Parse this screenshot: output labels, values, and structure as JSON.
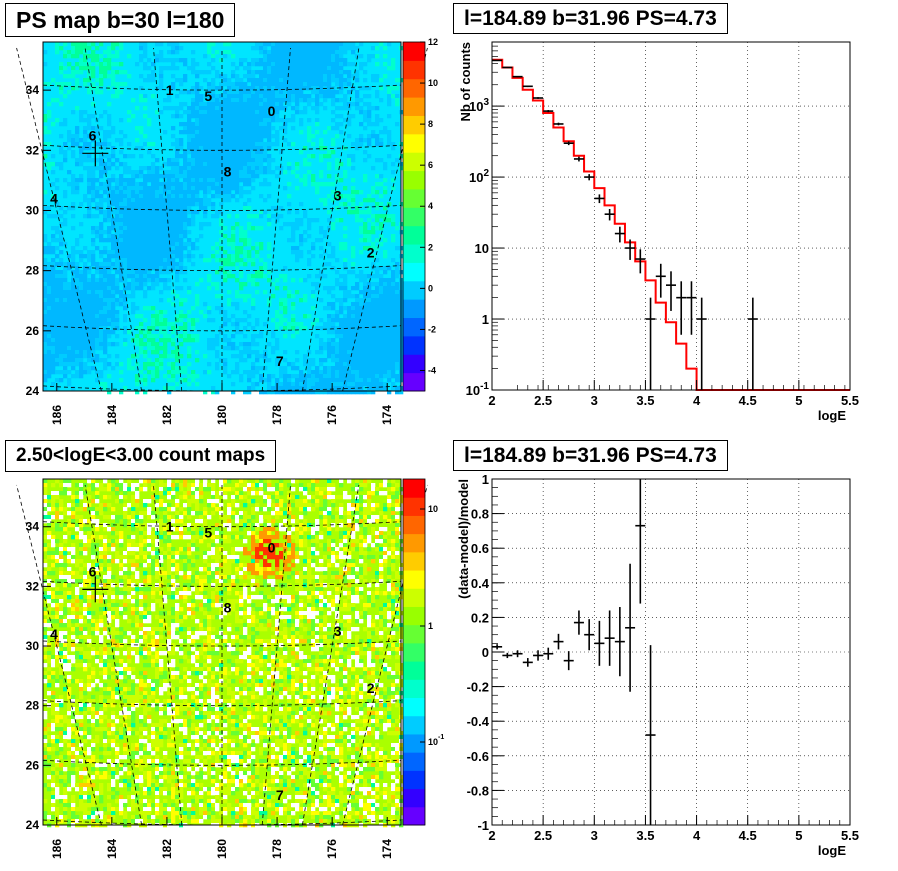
{
  "titles": {
    "ps_map": "PS map b=30 l=180",
    "spectrum": "l=184.89 b=31.96 PS=4.73",
    "count_map": "2.50<logE<3.00 count maps",
    "residual": "l=184.89 b=31.96 PS=4.73"
  },
  "chart_data": [
    {
      "type": "heatmap",
      "title": "PS map b=30 l=180",
      "x_ticks": [
        "186",
        "184",
        "182",
        "180",
        "178",
        "176",
        "174"
      ],
      "y_ticks": [
        "24",
        "26",
        "28",
        "30",
        "32",
        "34"
      ],
      "xlim": [
        186.5,
        173.5
      ],
      "ylim": [
        24,
        35.6
      ],
      "colorbar_ticks": [
        "-4",
        "-2",
        "0",
        "2",
        "4",
        "6",
        "8",
        "10",
        "12"
      ],
      "colorbar_range": [
        -5,
        12
      ],
      "sources": [
        {
          "label": "0",
          "l": 178.2,
          "b": 33.3
        },
        {
          "label": "1",
          "l": 181.9,
          "b": 34.0
        },
        {
          "label": "2",
          "l": 174.6,
          "b": 28.6
        },
        {
          "label": "3",
          "l": 175.8,
          "b": 30.5
        },
        {
          "label": "4",
          "l": 186.1,
          "b": 30.4
        },
        {
          "label": "5",
          "l": 180.5,
          "b": 33.8
        },
        {
          "label": "6",
          "l": 184.7,
          "b": 32.5
        },
        {
          "label": "7",
          "l": 177.9,
          "b": 25.0
        },
        {
          "label": "8",
          "l": 179.8,
          "b": 31.3
        }
      ],
      "marker": {
        "l": 184.6,
        "b": 31.9
      }
    },
    {
      "type": "line",
      "title": "l=184.89 b=31.96 PS=4.73",
      "xlabel": "logE",
      "ylabel": "Nb of counts",
      "yscale": "log",
      "xlim": [
        2,
        5.5
      ],
      "ylim": [
        0.1,
        8000
      ],
      "x_ticks": [
        "2",
        "2.5",
        "3",
        "3.5",
        "4",
        "4.5",
        "5",
        "5.5"
      ],
      "y_ticks": [
        "10^-1",
        "1",
        "10",
        "10^2",
        "10^3"
      ],
      "grid": true,
      "data_points": [
        {
          "x": 2.05,
          "y": 4400,
          "err": [
            60,
            60
          ]
        },
        {
          "x": 2.15,
          "y": 3500,
          "err": [
            60,
            60
          ]
        },
        {
          "x": 2.25,
          "y": 2600,
          "err": [
            50,
            50
          ]
        },
        {
          "x": 2.35,
          "y": 1900,
          "err": [
            45,
            45
          ]
        },
        {
          "x": 2.45,
          "y": 1300,
          "err": [
            36,
            36
          ]
        },
        {
          "x": 2.55,
          "y": 850,
          "err": [
            30,
            30
          ]
        },
        {
          "x": 2.65,
          "y": 560,
          "err": [
            24,
            24
          ]
        },
        {
          "x": 2.75,
          "y": 300,
          "err": [
            18,
            18
          ]
        },
        {
          "x": 2.85,
          "y": 180,
          "err": [
            14,
            14
          ]
        },
        {
          "x": 2.95,
          "y": 100,
          "err": [
            10,
            10
          ]
        },
        {
          "x": 3.05,
          "y": 50,
          "err": [
            7,
            7
          ]
        },
        {
          "x": 3.15,
          "y": 30,
          "err": [
            5.5,
            5.5
          ]
        },
        {
          "x": 3.25,
          "y": 16,
          "err": [
            4,
            4
          ]
        },
        {
          "x": 3.35,
          "y": 10,
          "err": [
            3.2,
            3.2
          ]
        },
        {
          "x": 3.45,
          "y": 7,
          "err": [
            2.6,
            2.6
          ]
        },
        {
          "x": 3.55,
          "y": 1,
          "err": [
            0.9,
            1
          ]
        },
        {
          "x": 3.65,
          "y": 4,
          "err": [
            2,
            2
          ]
        },
        {
          "x": 3.75,
          "y": 3,
          "err": [
            1.7,
            1.7
          ]
        },
        {
          "x": 3.85,
          "y": 2,
          "err": [
            1.4,
            1.4
          ]
        },
        {
          "x": 3.95,
          "y": 2,
          "err": [
            1.4,
            1.4
          ]
        },
        {
          "x": 4.05,
          "y": 1,
          "err": [
            0.9,
            1
          ]
        },
        {
          "x": 4.55,
          "y": 1,
          "err": [
            0.9,
            1
          ]
        }
      ],
      "model_edges": [
        2.0,
        2.1,
        2.2,
        2.3,
        2.4,
        2.5,
        2.6,
        2.7,
        2.8,
        2.9,
        3.0,
        3.1,
        3.2,
        3.3,
        3.4,
        3.5,
        3.6,
        3.7,
        3.8,
        3.9,
        4.0,
        5.5
      ],
      "model_values": [
        4500,
        3500,
        2500,
        1700,
        1200,
        800,
        500,
        320,
        200,
        120,
        70,
        40,
        22,
        12,
        6.5,
        3.5,
        1.7,
        0.9,
        0.45,
        0.2,
        0.1
      ]
    },
    {
      "type": "heatmap",
      "title": "2.50<logE<3.00 count maps",
      "x_ticks": [
        "186",
        "184",
        "182",
        "180",
        "178",
        "176",
        "174"
      ],
      "y_ticks": [
        "24",
        "26",
        "28",
        "30",
        "32",
        "34"
      ],
      "xlim": [
        186.5,
        173.5
      ],
      "ylim": [
        24,
        35.6
      ],
      "colorbar_ticks": [
        "10",
        "1",
        "10^-1"
      ],
      "colorscale": "log",
      "sources": [
        {
          "label": "0",
          "l": 178.2,
          "b": 33.3
        },
        {
          "label": "1",
          "l": 181.9,
          "b": 34.0
        },
        {
          "label": "2",
          "l": 174.6,
          "b": 28.6
        },
        {
          "label": "3",
          "l": 175.8,
          "b": 30.5
        },
        {
          "label": "4",
          "l": 186.1,
          "b": 30.4
        },
        {
          "label": "5",
          "l": 180.5,
          "b": 33.8
        },
        {
          "label": "6",
          "l": 184.7,
          "b": 32.5
        },
        {
          "label": "7",
          "l": 177.9,
          "b": 25.0
        },
        {
          "label": "8",
          "l": 179.8,
          "b": 31.3
        }
      ],
      "marker": {
        "l": 184.6,
        "b": 31.9
      }
    },
    {
      "type": "scatter",
      "title": "l=184.89 b=31.96 PS=4.73",
      "xlabel": "logE",
      "ylabel": "(data-model)/model",
      "xlim": [
        2,
        5.5
      ],
      "ylim": [
        -1,
        1
      ],
      "x_ticks": [
        "2",
        "2.5",
        "3",
        "3.5",
        "4",
        "4.5",
        "5",
        "5.5"
      ],
      "y_ticks": [
        "-1",
        "-0.8",
        "-0.6",
        "-0.4",
        "-0.2",
        "0",
        "0.2",
        "0.4",
        "0.6",
        "0.8",
        "1"
      ],
      "grid": true,
      "data_points": [
        {
          "x": 2.05,
          "y": 0.03,
          "err": 0.015
        },
        {
          "x": 2.15,
          "y": -0.02,
          "err": 0.015
        },
        {
          "x": 2.25,
          "y": -0.01,
          "err": 0.02
        },
        {
          "x": 2.35,
          "y": -0.06,
          "err": 0.025
        },
        {
          "x": 2.45,
          "y": -0.02,
          "err": 0.03
        },
        {
          "x": 2.55,
          "y": -0.01,
          "err": 0.035
        },
        {
          "x": 2.65,
          "y": 0.06,
          "err": 0.045
        },
        {
          "x": 2.75,
          "y": -0.05,
          "err": 0.055
        },
        {
          "x": 2.85,
          "y": 0.17,
          "err": 0.07
        },
        {
          "x": 2.95,
          "y": 0.1,
          "err": 0.09
        },
        {
          "x": 3.05,
          "y": 0.05,
          "err": 0.13
        },
        {
          "x": 3.15,
          "y": 0.08,
          "err": 0.16
        },
        {
          "x": 3.25,
          "y": 0.06,
          "err": 0.2
        },
        {
          "x": 3.35,
          "y": 0.14,
          "err": 0.37
        },
        {
          "x": 3.45,
          "y": 0.73,
          "err": 0.45
        },
        {
          "x": 3.55,
          "y": -0.48,
          "err": 0.52
        }
      ]
    }
  ]
}
